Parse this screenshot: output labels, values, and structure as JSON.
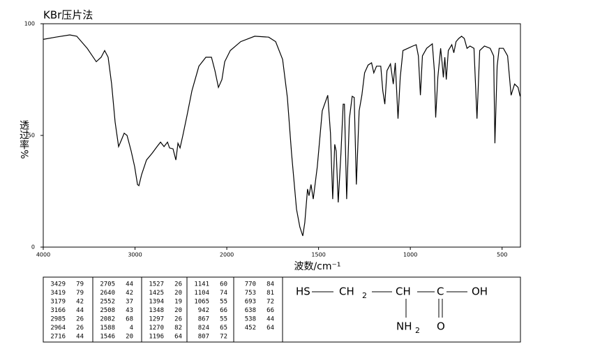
{
  "chart_data": {
    "type": "line",
    "title": "KBr压片法",
    "y_label": "透过率%",
    "x_label": "波数/cm⁻¹",
    "xlim": [
      4000,
      400
    ],
    "xticks": [
      4000,
      3000,
      2000,
      1500,
      1000,
      500
    ],
    "ylim": [
      0,
      100
    ],
    "yticks": [
      0,
      50,
      100
    ],
    "x": [
      4000,
      3863,
      3711,
      3635,
      3521,
      3422,
      3369,
      3331,
      3293,
      3255,
      3217,
      3179,
      3148,
      3118,
      3087,
      3042,
      3004,
      2973,
      2958,
      2928,
      2875,
      2814,
      2760,
      2722,
      2684,
      2646,
      2624,
      2586,
      2555,
      2532,
      2509,
      2479,
      2433,
      2380,
      2304,
      2228,
      2167,
      2129,
      2091,
      2053,
      2023,
      1981,
      1924,
      1848,
      1772,
      1734,
      1696,
      1670,
      1647,
      1620,
      1602,
      1586,
      1575,
      1560,
      1552,
      1541,
      1529,
      1507,
      1480,
      1450,
      1435,
      1423,
      1412,
      1404,
      1393,
      1378,
      1366,
      1359,
      1347,
      1332,
      1317,
      1306,
      1294,
      1279,
      1264,
      1249,
      1230,
      1211,
      1199,
      1184,
      1161,
      1150,
      1139,
      1127,
      1108,
      1093,
      1082,
      1067,
      1055,
      1040,
      1013,
      987,
      968,
      956,
      945,
      934,
      911,
      880,
      869,
      862,
      850,
      835,
      827,
      820,
      812,
      804,
      793,
      774,
      763,
      751,
      736,
      721,
      706,
      691,
      675,
      653,
      637,
      622,
      596,
      565,
      546,
      539,
      527,
      516,
      493,
      470,
      451,
      432,
      413,
      402
    ],
    "series": [
      {
        "color": "#000000",
        "values": [
          93,
          94,
          95,
          94.4,
          89,
          83,
          85,
          88,
          85,
          73,
          56,
          45,
          48,
          51,
          50,
          43,
          36,
          28,
          27.5,
          32.5,
          39,
          42,
          45,
          47,
          45,
          47,
          44.4,
          44,
          39,
          46.5,
          44.4,
          50,
          59,
          70,
          81,
          85,
          85,
          79,
          71.5,
          75,
          83,
          88,
          92,
          94.4,
          94,
          92,
          84,
          67,
          42,
          17,
          9,
          5,
          11,
          26,
          23,
          28,
          21.5,
          36,
          61,
          68,
          51,
          21.5,
          46,
          43,
          20,
          42,
          64,
          64,
          21.5,
          57.5,
          67.5,
          67,
          28,
          61,
          68,
          78,
          81.5,
          82.5,
          78,
          81,
          81,
          70,
          64,
          79,
          82,
          73,
          82.5,
          57.5,
          76,
          88,
          89,
          90,
          90.6,
          85.6,
          68,
          85.6,
          89,
          91,
          79,
          58,
          76,
          89,
          82.5,
          76,
          85,
          75,
          88,
          90.6,
          87,
          92,
          93.4,
          94.4,
          93.4,
          89,
          90,
          89,
          57.5,
          88,
          90,
          89,
          85.6,
          46.5,
          81,
          89,
          89,
          85.6,
          68,
          73,
          71.5,
          67.5
        ]
      }
    ]
  },
  "peak_table": {
    "columns": [
      [
        [
          3429,
          79
        ],
        [
          3419,
          79
        ],
        [
          3179,
          42
        ],
        [
          3166,
          44
        ],
        [
          2985,
          26
        ],
        [
          2964,
          26
        ],
        [
          2716,
          44
        ]
      ],
      [
        [
          2705,
          44
        ],
        [
          2640,
          42
        ],
        [
          2552,
          37
        ],
        [
          2508,
          43
        ],
        [
          2082,
          68
        ],
        [
          1588,
          4
        ],
        [
          1546,
          20
        ]
      ],
      [
        [
          1527,
          26
        ],
        [
          1425,
          20
        ],
        [
          1394,
          19
        ],
        [
          1348,
          20
        ],
        [
          1297,
          26
        ],
        [
          1270,
          82
        ],
        [
          1196,
          64
        ]
      ],
      [
        [
          1141,
          60
        ],
        [
          1104,
          74
        ],
        [
          1065,
          55
        ],
        [
          942,
          66
        ],
        [
          867,
          55
        ],
        [
          824,
          65
        ],
        [
          807,
          72
        ]
      ],
      [
        [
          770,
          84
        ],
        [
          753,
          81
        ],
        [
          693,
          72
        ],
        [
          638,
          66
        ],
        [
          538,
          44
        ],
        [
          452,
          64
        ]
      ]
    ]
  },
  "structure": {
    "hs": "HS",
    "ch2": "CH",
    "ch2_sub": "2",
    "ch": "CH",
    "c": "C",
    "oh": "OH",
    "nh2": "NH",
    "nh2_sub": "2",
    "o": "O"
  }
}
